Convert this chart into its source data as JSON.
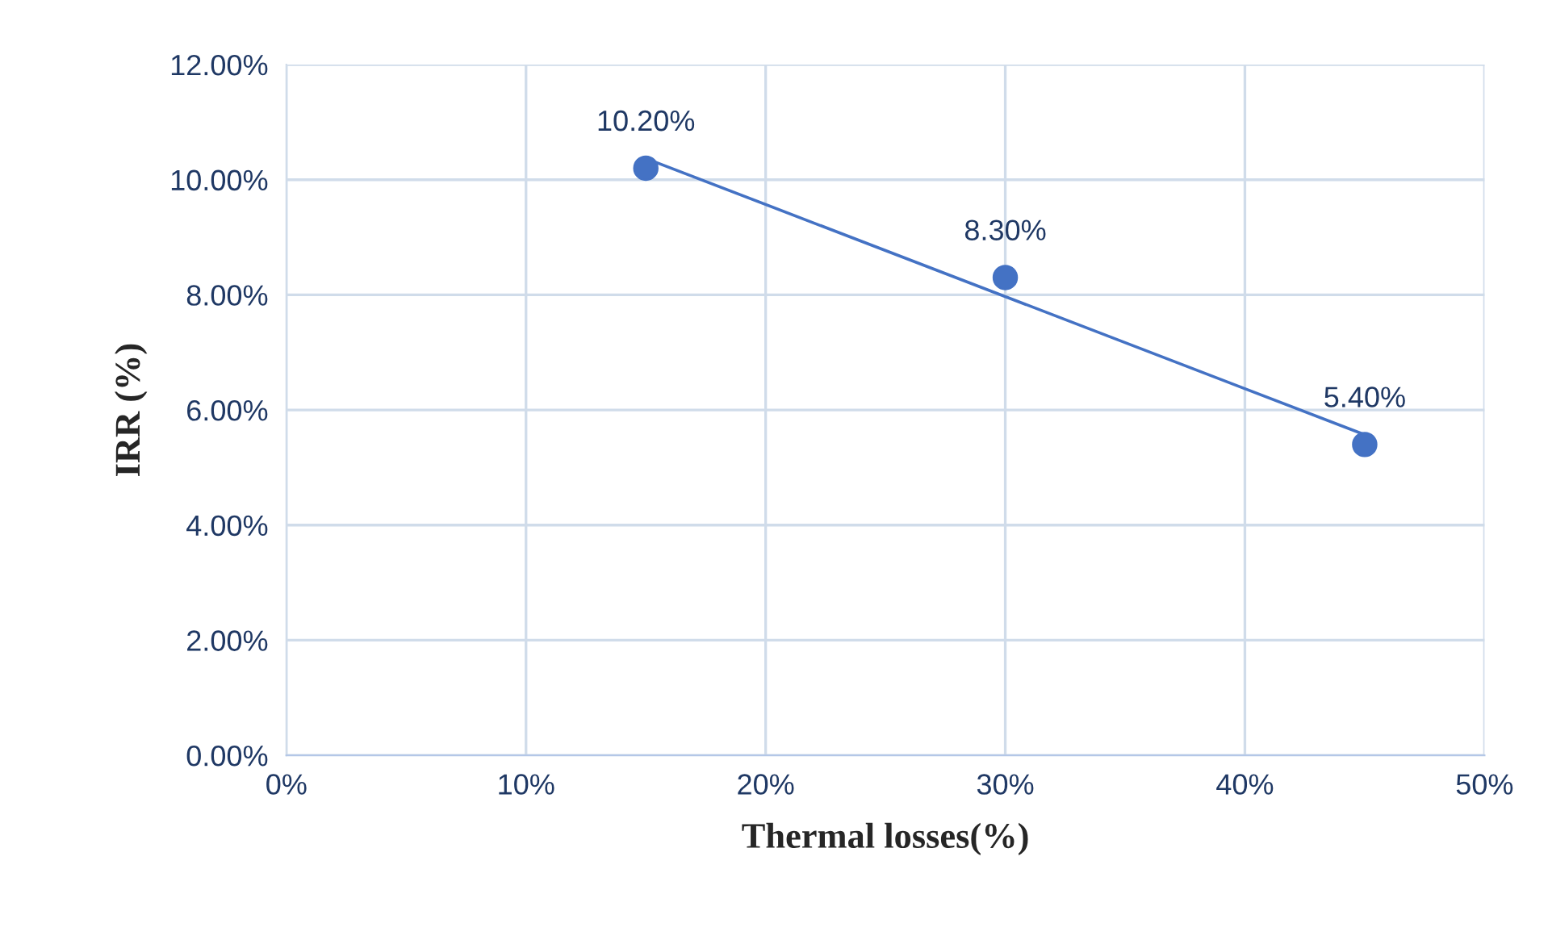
{
  "chart_data": {
    "type": "scatter",
    "xlabel": "Thermal losses(%)",
    "ylabel": "IRR (%)",
    "series": [
      {
        "color": "#4472c4",
        "x": [
          15,
          30,
          45
        ],
        "values": [
          10.2,
          8.3,
          5.4
        ],
        "value_labels": [
          "10.20%",
          "8.30%",
          "5.40%"
        ],
        "marker": "circle"
      },
      {
        "type": "line",
        "color": "#4472c4",
        "x": [
          15,
          45
        ],
        "values": [
          10.37,
          5.57
        ],
        "marker": "none",
        "line_style": "solid"
      }
    ],
    "xlim": [
      0,
      50
    ],
    "xticks": [
      {
        "value": 0,
        "label": "0%"
      },
      {
        "value": 10,
        "label": "10%"
      },
      {
        "value": 20,
        "label": "20%"
      },
      {
        "value": 30,
        "label": "30%"
      },
      {
        "value": 40,
        "label": "40%"
      },
      {
        "value": 50,
        "label": "50%"
      }
    ],
    "ylim": [
      0,
      12
    ],
    "yticks": [
      {
        "value": 0,
        "label": "0.00%"
      },
      {
        "value": 2,
        "label": "2.00%"
      },
      {
        "value": 4,
        "label": "4.00%"
      },
      {
        "value": 6,
        "label": "6.00%"
      },
      {
        "value": 8,
        "label": "8.00%"
      },
      {
        "value": 10,
        "label": "10.00%"
      },
      {
        "value": 12,
        "label": "12.00%"
      }
    ],
    "grid": true,
    "legend": false
  }
}
